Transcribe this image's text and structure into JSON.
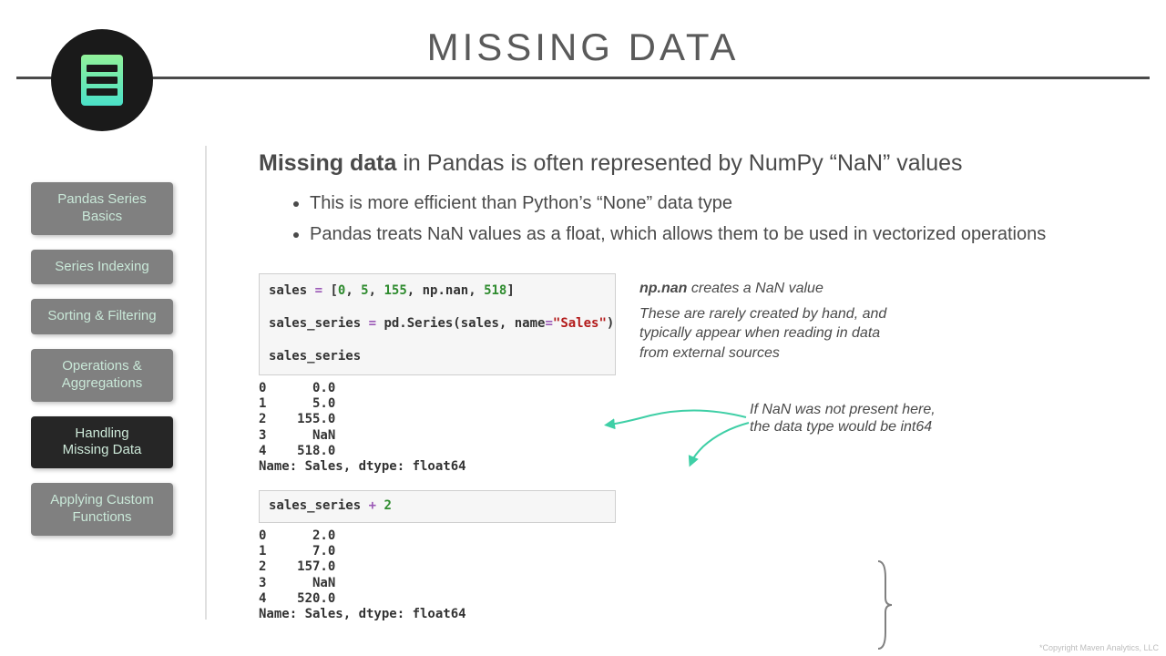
{
  "title": "MISSING DATA",
  "nav": {
    "items": [
      {
        "label": "Pandas Series\nBasics",
        "active": false
      },
      {
        "label": "Series Indexing",
        "active": false
      },
      {
        "label": "Sorting & Filtering",
        "active": false
      },
      {
        "label": "Operations &\nAggregations",
        "active": false
      },
      {
        "label": "Handling\nMissing Data",
        "active": true
      },
      {
        "label": "Applying Custom\nFunctions",
        "active": false
      }
    ]
  },
  "headline_bold": "Missing data",
  "headline_rest": " in Pandas is often represented by NumPy “NaN” values",
  "bullets": [
    "This is more efficient than Python’s “None” data type",
    "Pandas treats NaN values as a float, which allows them to be used in vectorized operations"
  ],
  "code1": {
    "line1a": "sales ",
    "line1b": "=",
    "line1c": " [",
    "nums": [
      "0",
      "5",
      "155",
      "518"
    ],
    "nan": "np.nan",
    "line1d": "]",
    "line2a": "sales_series ",
    "line2b": "=",
    "line2c": " pd.Series(sales, name",
    "line2d": "=",
    "line2e": "\"Sales\"",
    "line2f": ")",
    "line3": "sales_series"
  },
  "out1": "0      0.0\n1      5.0\n2    155.0\n3      NaN\n4    518.0\nName: Sales, dtype: float64",
  "code2a": "sales_series ",
  "code2b": "+",
  "code2c": " ",
  "code2d": "2",
  "out2": "0      2.0\n1      7.0\n2    157.0\n3      NaN\n4    520.0\nName: Sales, dtype: float64",
  "note_bold": "np.nan",
  "note_rest": " creates a NaN value",
  "note_body": "These are rarely created by hand, and typically appear when reading in data from external sources",
  "annot1": "If NaN was not present here,",
  "annot2": "the data type would be int64",
  "colors": {
    "accent_arrow": "#3fcfa6",
    "code_num": "#2e8b2e",
    "code_str": "#b31b1b",
    "code_op": "#9b59b6"
  },
  "copyright": "*Copyright Maven Analytics, LLC"
}
